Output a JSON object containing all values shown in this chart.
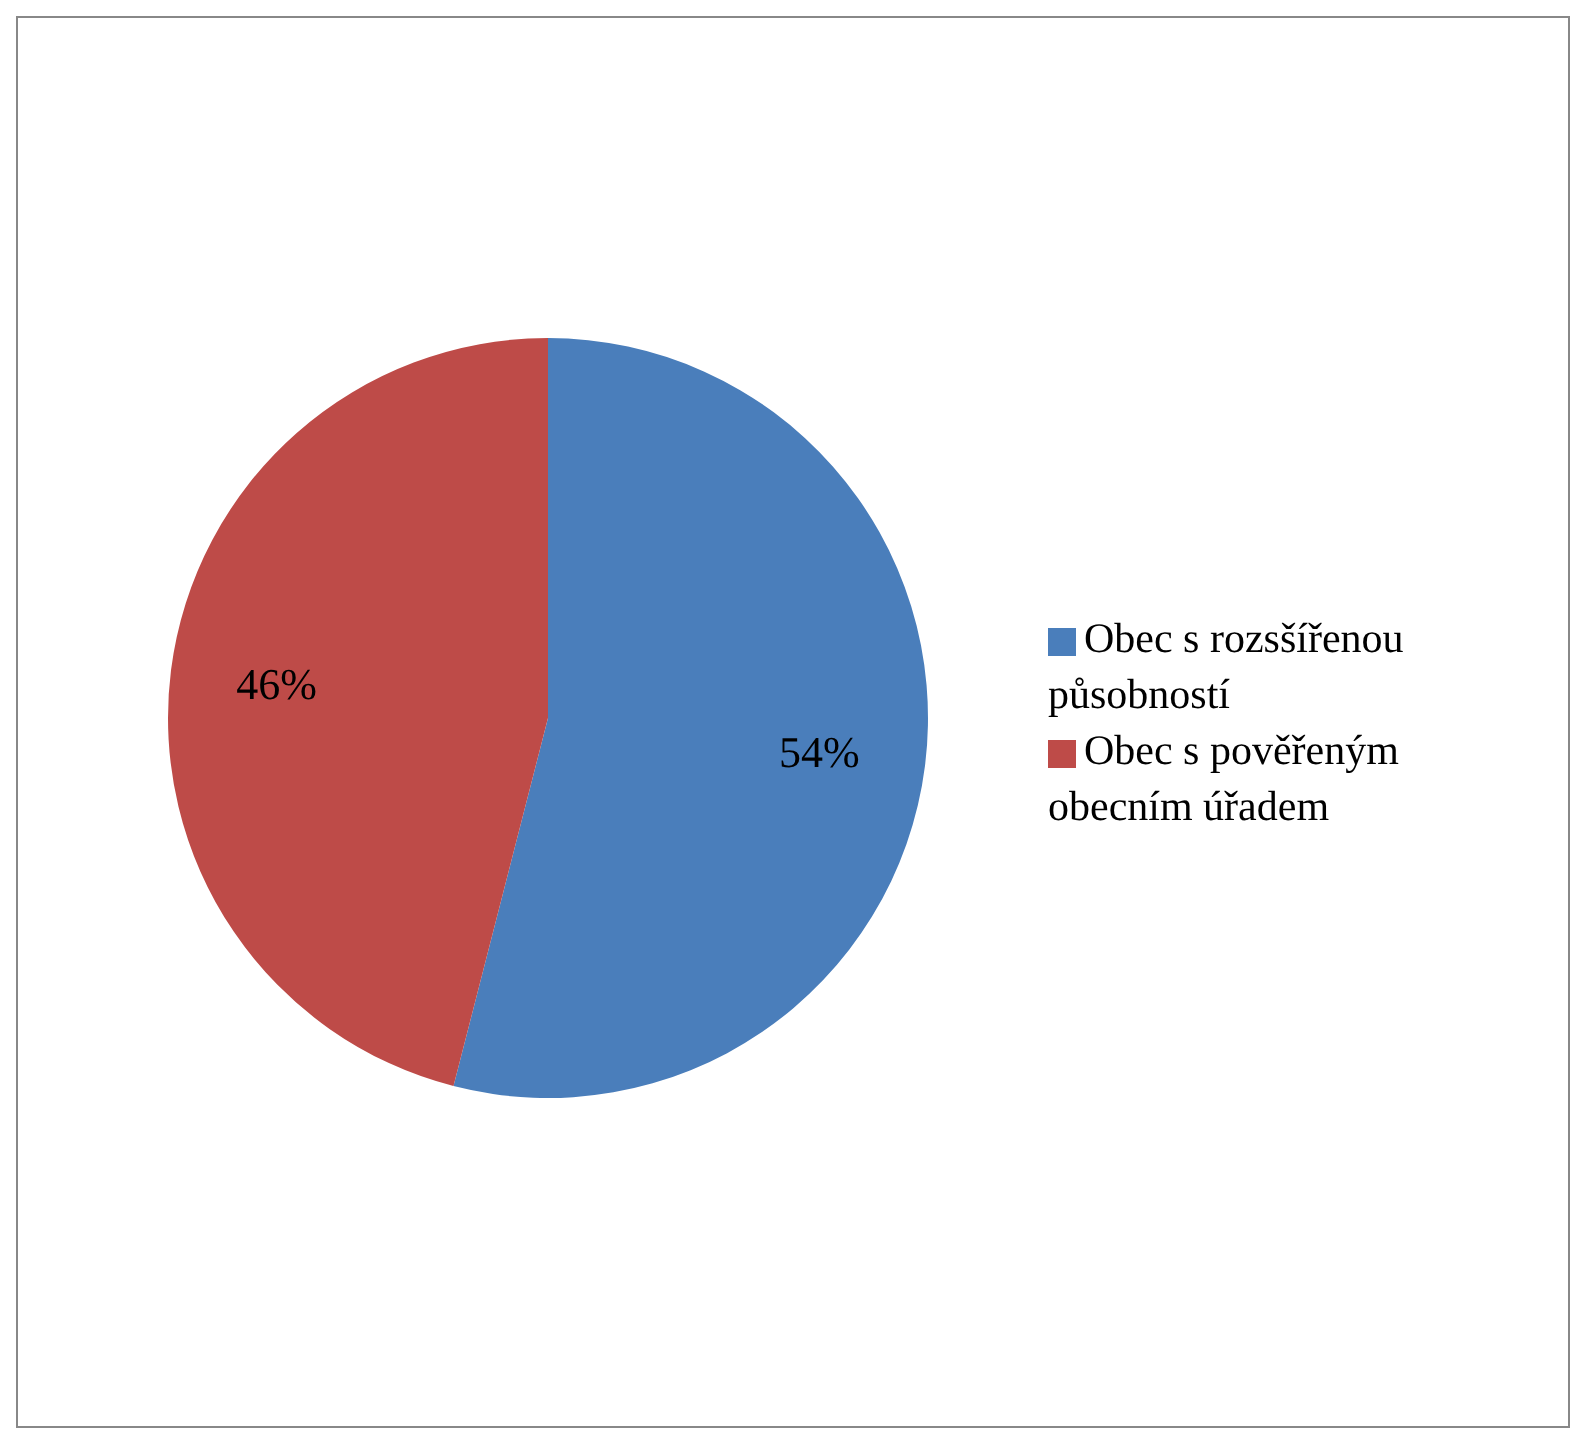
{
  "chart_data": {
    "type": "pie",
    "categories": [
      "Obec s rozsšířenou působností",
      "Obec s pověřeným obecním úřadem"
    ],
    "values": [
      54,
      46
    ],
    "colors": [
      "#4a7ebb",
      "#be4b48"
    ],
    "value_labels": [
      "54%",
      "46%"
    ],
    "legend": "right"
  }
}
